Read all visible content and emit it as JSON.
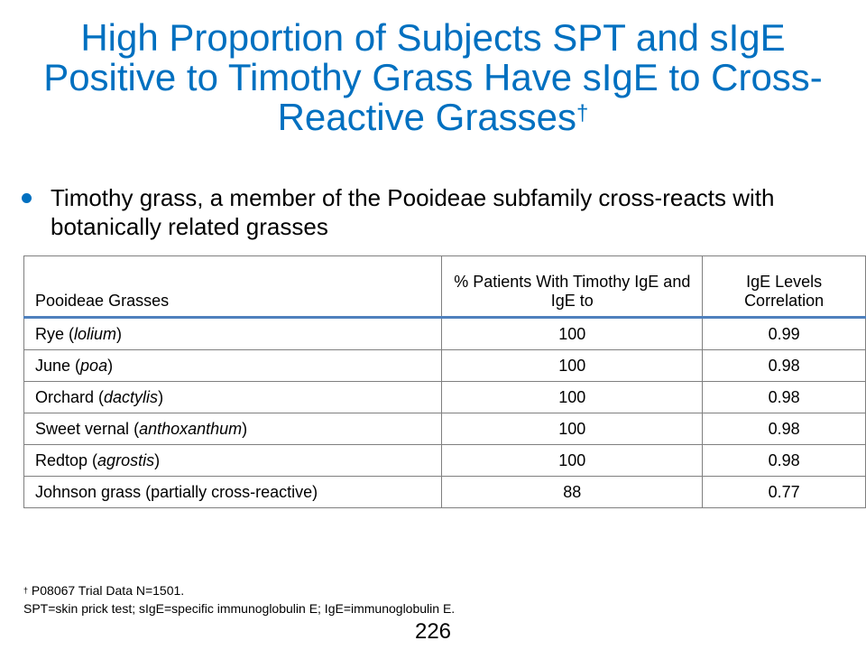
{
  "slide": {
    "title": "High Proportion of Subjects SPT and sIgE Positive to Timothy Grass Have sIgE to Cross-Reactive Grasses",
    "title_mark": "†",
    "bullet": "Timothy grass, a member of the Pooideae subfamily cross-reacts with botanically related grasses"
  },
  "table": {
    "headers": [
      "Pooideae  Grasses",
      "% Patients With Timothy IgE and IgE to",
      "IgE Levels Correlation"
    ],
    "rows": [
      {
        "name": "Rye",
        "latin": "lolium",
        "pct": "100",
        "corr": "0.99"
      },
      {
        "name": "June",
        "latin": "poa",
        "pct": "100",
        "corr": "0.98"
      },
      {
        "name": "Orchard",
        "latin": "dactylis",
        "pct": "100",
        "corr": "0.98"
      },
      {
        "name": "Sweet vernal",
        "latin": "anthoxanthum",
        "pct": "100",
        "corr": "0.98"
      },
      {
        "name": "Redtop",
        "latin": "agrostis",
        "pct": "100",
        "corr": "0.98"
      },
      {
        "name": "Johnson grass (partially cross-reactive)",
        "latin": "",
        "pct": "88",
        "corr": "0.77"
      }
    ]
  },
  "footnote": {
    "mark": "†",
    "line1": " P08067 Trial Data N=1501.",
    "line2": "SPT=skin prick test; sIgE=specific immunoglobulin E; IgE=immunoglobulin E."
  },
  "page_number": "226",
  "colors": {
    "accent": "#0070C0",
    "table_rule": "#4f81bd"
  }
}
